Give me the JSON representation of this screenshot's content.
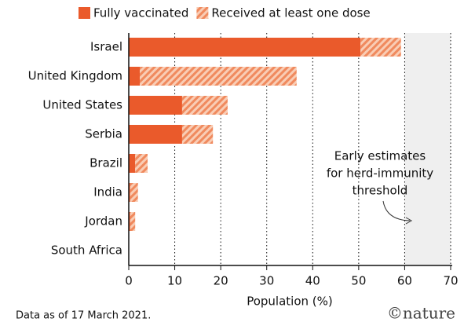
{
  "chart_data": {
    "type": "stacked_barh",
    "categories": [
      "Israel",
      "United Kingdom",
      "United States",
      "Serbia",
      "Brazil",
      "India",
      "Jordan",
      "South Africa"
    ],
    "series": [
      {
        "name": "Fully vaccinated",
        "color": "#ea5a2b",
        "values": [
          50.4,
          2.4,
          11.6,
          11.6,
          1.4,
          0.3,
          0.3,
          0
        ]
      },
      {
        "name": "Received at least one dose",
        "color": "#f08a5e",
        "hatch": true,
        "values": [
          8.8,
          34.1,
          9.9,
          6.7,
          2.7,
          1.7,
          1.1,
          0
        ]
      }
    ],
    "xlim": [
      0,
      70
    ],
    "xticks": [
      0,
      10,
      20,
      30,
      40,
      50,
      60,
      70
    ],
    "xlabel": "Population (%)",
    "grid": true,
    "threshold_range": [
      60,
      70
    ],
    "annotation": [
      "Early estimates",
      "for herd-immunity",
      "threshold"
    ],
    "note": "Data as of 17 March 2021.",
    "source": "©nature"
  }
}
